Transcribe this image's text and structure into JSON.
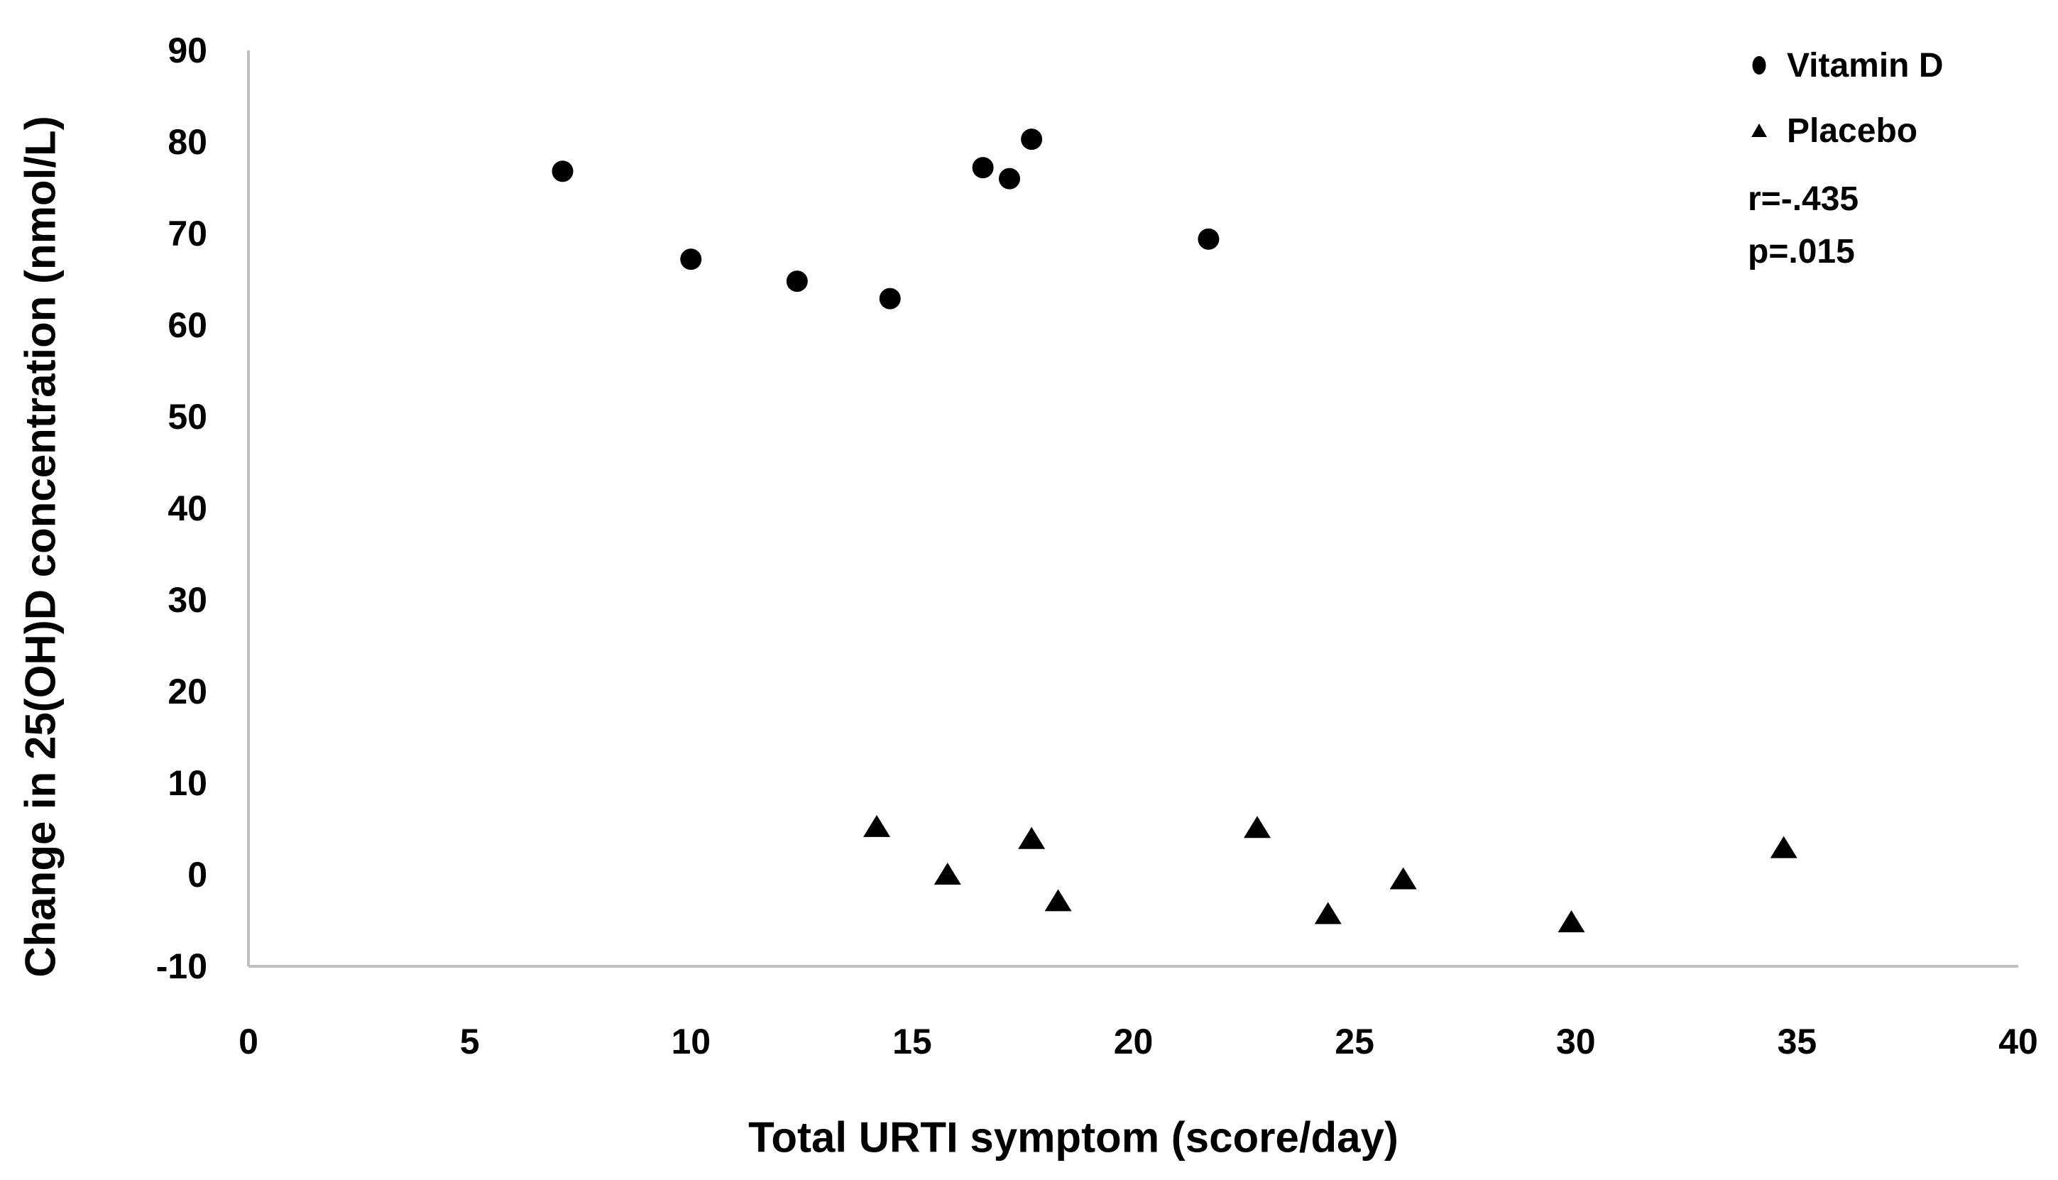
{
  "figure": {
    "background": "#ffffff",
    "axis_color": "#bfbfbf",
    "text_color": "#000000",
    "marker_color": "#000000"
  },
  "chart_data": {
    "type": "scatter",
    "title": "",
    "xlabel": "Total URTI symptom (score/day)",
    "ylabel": "Change in 25(OH)D concentration (nmol/L)",
    "xlim": [
      0,
      40
    ],
    "ylim": [
      -10,
      90
    ],
    "x_ticks": [
      "0",
      "5",
      "10",
      "15",
      "20",
      "25",
      "30",
      "35",
      "40"
    ],
    "y_ticks": [
      "90",
      "80",
      "70",
      "60",
      "50",
      "40",
      "30",
      "20",
      "10",
      "0",
      "-10"
    ],
    "grid": false,
    "legend_position": "top-right",
    "series": [
      {
        "name": "Vitamin D",
        "marker": "circle",
        "points": [
          [
            7.1,
            76.8
          ],
          [
            10.0,
            67.2
          ],
          [
            12.4,
            64.8
          ],
          [
            14.5,
            62.9
          ],
          [
            16.6,
            77.2
          ],
          [
            17.2,
            76.0
          ],
          [
            17.7,
            80.3
          ],
          [
            21.7,
            69.4
          ]
        ]
      },
      {
        "name": "Placebo",
        "marker": "triangle",
        "points": [
          [
            14.2,
            5.2
          ],
          [
            15.8,
            0.0
          ],
          [
            17.7,
            3.9
          ],
          [
            18.3,
            -2.9
          ],
          [
            22.8,
            5.1
          ],
          [
            24.4,
            -4.3
          ],
          [
            26.1,
            -0.5
          ],
          [
            29.9,
            -5.2
          ],
          [
            34.7,
            2.9
          ]
        ]
      }
    ],
    "annotations": [
      "r=-.435",
      "p=.015"
    ]
  },
  "legend": {
    "items": [
      {
        "label": "Vitamin D",
        "marker": "circle-marker-icon"
      },
      {
        "label": "Placebo",
        "marker": "triangle-marker-icon"
      }
    ],
    "r_label": "r=-.435",
    "p_label": "p=.015"
  }
}
